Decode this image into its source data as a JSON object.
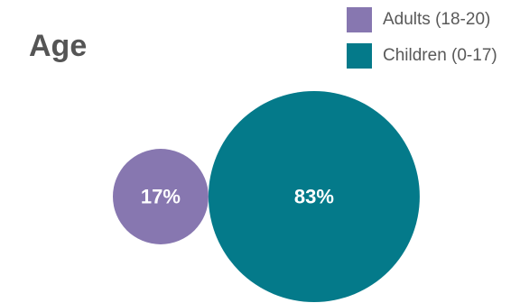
{
  "chart_data": {
    "type": "bubble",
    "title": "Age",
    "series": [
      {
        "name": "Adults (18-20)",
        "value": 17,
        "label": "17%",
        "color": "#8777b0"
      },
      {
        "name": "Children (0-17)",
        "value": 83,
        "label": "83%",
        "color": "#047a8a"
      }
    ],
    "legend_position": "top-right",
    "label_color": "#ffffff"
  }
}
